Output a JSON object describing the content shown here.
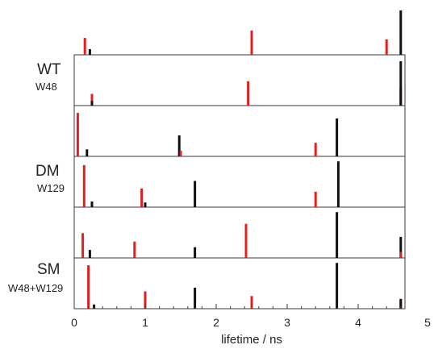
{
  "chart_data": {
    "type": "bar",
    "xlabel": "lifetime / ns",
    "xlim": [
      0,
      5
    ],
    "x_ticks": [
      "0",
      "1",
      "2",
      "3",
      "4",
      "5"
    ],
    "colors": {
      "black": "#111111",
      "red": "#e02020"
    },
    "groups": [
      {
        "name": "WT",
        "sublabel": "W48",
        "panels": [
          {
            "bars": [
              {
                "x": 0.15,
                "amp": 0.36,
                "color": "red"
              },
              {
                "x": 0.22,
                "amp": 0.12,
                "color": "black"
              },
              {
                "x": 2.5,
                "amp": 0.52,
                "color": "red"
              },
              {
                "x": 4.4,
                "amp": 0.33,
                "color": "red"
              },
              {
                "x": 4.6,
                "amp": 0.95,
                "color": "black"
              }
            ]
          },
          {
            "bars": [
              {
                "x": 0.25,
                "amp": 0.25,
                "color": "red"
              },
              {
                "x": 0.25,
                "amp": 0.1,
                "color": "black"
              },
              {
                "x": 2.45,
                "amp": 0.52,
                "color": "red"
              },
              {
                "x": 4.6,
                "amp": 0.37,
                "color": "red"
              },
              {
                "x": 4.6,
                "amp": 0.95,
                "color": "black"
              }
            ]
          }
        ]
      },
      {
        "name": "DM",
        "sublabel": "W129",
        "panels": [
          {
            "bars": [
              {
                "x": 0.05,
                "amp": 0.93,
                "color": "red"
              },
              {
                "x": 0.18,
                "amp": 0.15,
                "color": "black"
              },
              {
                "x": 1.48,
                "amp": 0.45,
                "color": "black"
              },
              {
                "x": 1.5,
                "amp": 0.12,
                "color": "red"
              },
              {
                "x": 3.4,
                "amp": 0.29,
                "color": "red"
              },
              {
                "x": 3.7,
                "amp": 0.81,
                "color": "black"
              }
            ]
          },
          {
            "bars": [
              {
                "x": 0.14,
                "amp": 0.9,
                "color": "red"
              },
              {
                "x": 0.25,
                "amp": 0.12,
                "color": "black"
              },
              {
                "x": 0.95,
                "amp": 0.4,
                "color": "red"
              },
              {
                "x": 1.0,
                "amp": 0.1,
                "color": "black"
              },
              {
                "x": 1.7,
                "amp": 0.56,
                "color": "black"
              },
              {
                "x": 3.4,
                "amp": 0.33,
                "color": "red"
              },
              {
                "x": 3.72,
                "amp": 0.98,
                "color": "black"
              }
            ]
          }
        ]
      },
      {
        "name": "SM",
        "sublabel": "W48+W129",
        "panels": [
          {
            "bars": [
              {
                "x": 0.12,
                "amp": 0.53,
                "color": "red"
              },
              {
                "x": 0.22,
                "amp": 0.17,
                "color": "black"
              },
              {
                "x": 0.85,
                "amp": 0.35,
                "color": "red"
              },
              {
                "x": 1.7,
                "amp": 0.23,
                "color": "black"
              },
              {
                "x": 2.42,
                "amp": 0.73,
                "color": "red"
              },
              {
                "x": 3.7,
                "amp": 0.98,
                "color": "black"
              },
              {
                "x": 4.6,
                "amp": 0.45,
                "color": "black"
              },
              {
                "x": 4.6,
                "amp": 0.13,
                "color": "red"
              }
            ]
          },
          {
            "bars": [
              {
                "x": 0.2,
                "amp": 0.93,
                "color": "red"
              },
              {
                "x": 0.28,
                "amp": 0.09,
                "color": "black"
              },
              {
                "x": 1.0,
                "amp": 0.37,
                "color": "red"
              },
              {
                "x": 1.7,
                "amp": 0.45,
                "color": "black"
              },
              {
                "x": 2.5,
                "amp": 0.27,
                "color": "red"
              },
              {
                "x": 3.7,
                "amp": 0.98,
                "color": "black"
              },
              {
                "x": 4.6,
                "amp": 0.18,
                "color": "red"
              },
              {
                "x": 4.6,
                "amp": 0.21,
                "color": "black"
              }
            ]
          }
        ]
      }
    ]
  }
}
